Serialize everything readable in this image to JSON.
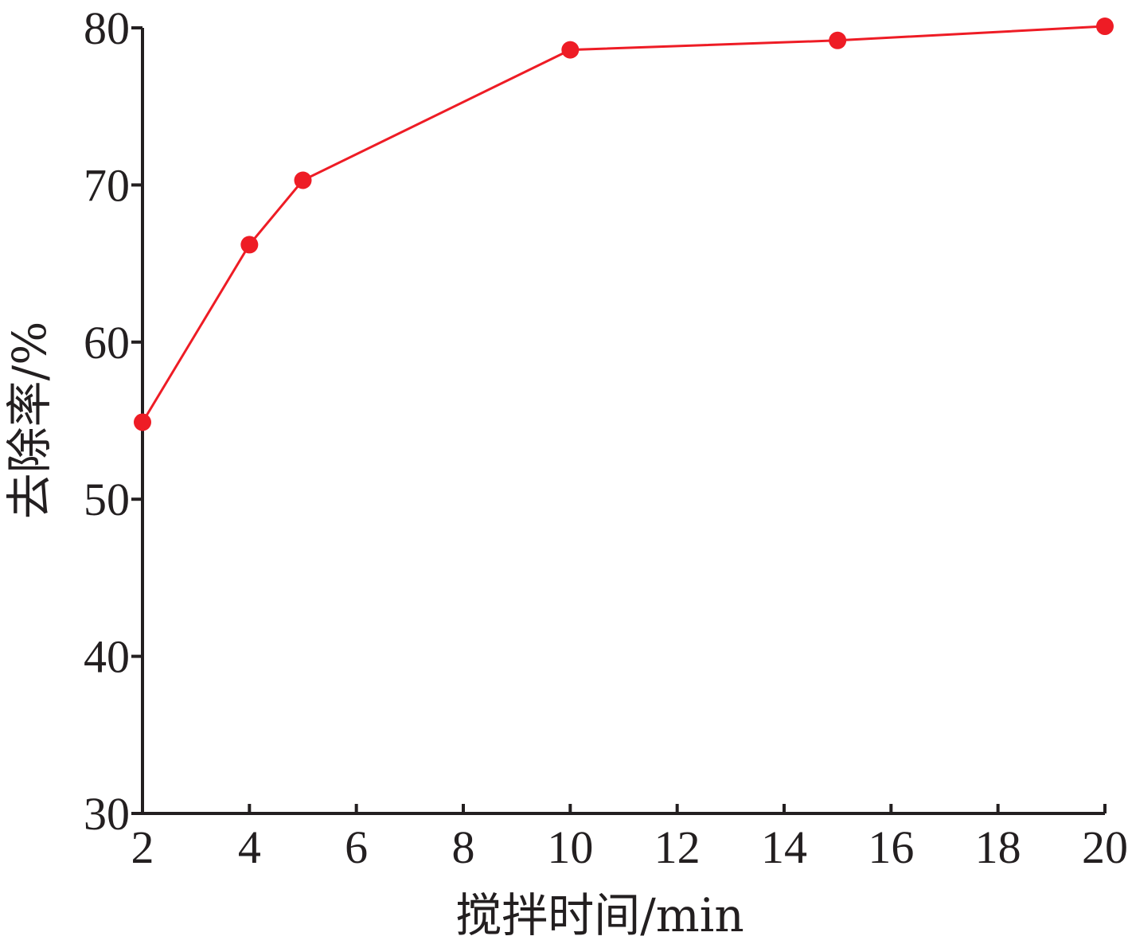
{
  "chart_data": {
    "type": "line",
    "xlabel": "搅拌时间/min",
    "ylabel": "去除率/%",
    "xlim": [
      2,
      20
    ],
    "ylim": [
      30,
      80
    ],
    "xticks": [
      2,
      4,
      6,
      8,
      10,
      12,
      14,
      16,
      18,
      20
    ],
    "yticks": [
      30,
      40,
      50,
      60,
      70,
      80
    ],
    "grid": false,
    "series": [
      {
        "color": "#ee1c25",
        "x": [
          2,
          4,
          5,
          10,
          15,
          20
        ],
        "y": [
          54.9,
          66.2,
          70.3,
          78.6,
          79.2,
          80.1
        ]
      }
    ]
  }
}
